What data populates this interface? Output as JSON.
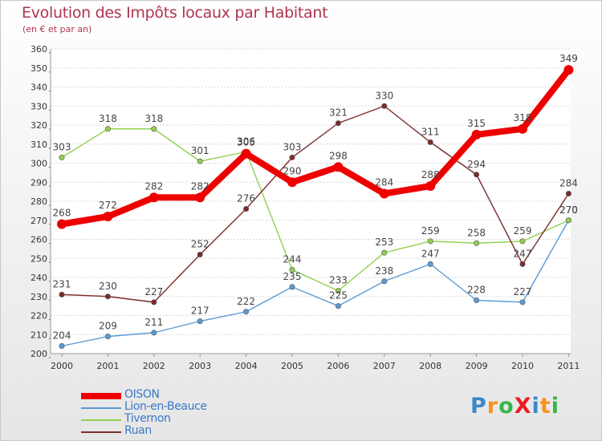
{
  "title": "Evolution des Impôts locaux par Habitant",
  "subtitle": "(en € et par an)",
  "logo": {
    "text": "ProXiti",
    "letter_colors": [
      "#3b88c8",
      "#f7941d",
      "#39b54a",
      "#ed1c24",
      "#3b88c8",
      "#f7941d",
      "#39b54a"
    ]
  },
  "chart_data": {
    "type": "line",
    "title": "Evolution des Impôts locaux par Habitant",
    "subtitle": "(en € et par an)",
    "x": [
      "2000",
      "2001",
      "2002",
      "2003",
      "2004",
      "2005",
      "2006",
      "2007",
      "2008",
      "2009",
      "2010",
      "2011"
    ],
    "ylim": [
      200,
      360
    ],
    "ytick_step": 10,
    "grid": "horizontal",
    "legend_position": "bottom-left",
    "series": [
      {
        "name": "OISON",
        "color": "#ee0000",
        "emphasis": true,
        "values": [
          268,
          272,
          282,
          282,
          305,
          290,
          298,
          284,
          288,
          315,
          318,
          349
        ]
      },
      {
        "name": "Lion-en-Beauce",
        "color": "#5b9bd5",
        "emphasis": false,
        "values": [
          204,
          209,
          211,
          217,
          222,
          235,
          225,
          238,
          247,
          228,
          227,
          270
        ]
      },
      {
        "name": "Tivernon",
        "color": "#92d050",
        "emphasis": false,
        "values": [
          303,
          318,
          318,
          301,
          306,
          244,
          233,
          253,
          259,
          258,
          259,
          270
        ]
      },
      {
        "name": "Ruan",
        "color": "#7b2c2c",
        "emphasis": false,
        "values": [
          231,
          230,
          227,
          252,
          276,
          303,
          321,
          330,
          311,
          294,
          247,
          284
        ]
      }
    ]
  }
}
